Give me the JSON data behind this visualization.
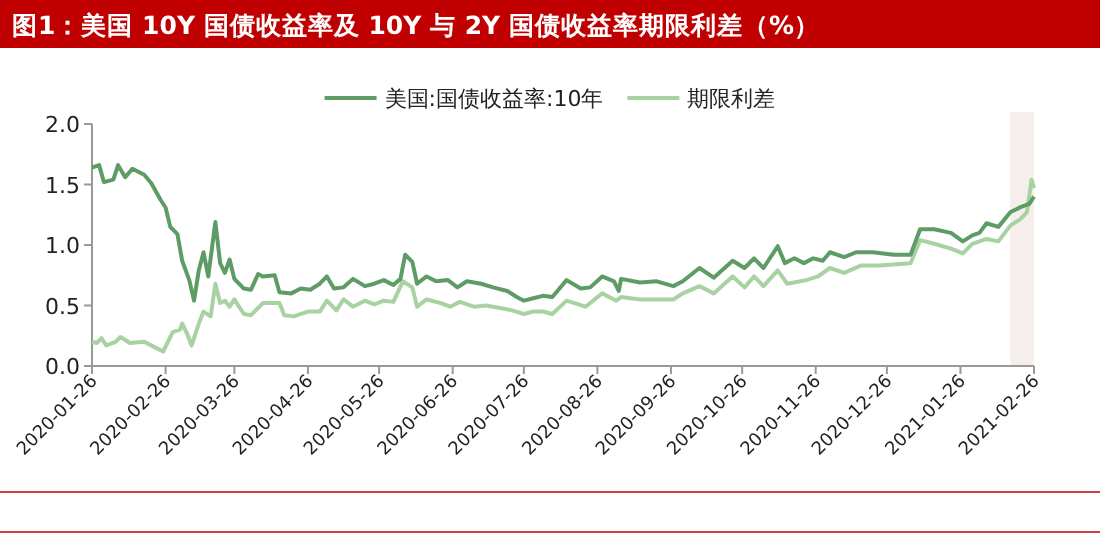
{
  "chart_data": {
    "type": "line",
    "title": "图1：美国 10Y 国债收益率及 10Y 与 2Y 国债收益率期限利差（%）",
    "series": [
      {
        "name": "美国:国债收益率:10年",
        "color": "#5e9c66",
        "x": [
          "2020-01-26",
          "2020-01-29",
          "2020-01-31",
          "2020-02-04",
          "2020-02-06",
          "2020-02-09",
          "2020-02-12",
          "2020-02-17",
          "2020-02-20",
          "2020-02-24",
          "2020-02-26",
          "2020-02-28",
          "2020-03-02",
          "2020-03-04",
          "2020-03-07",
          "2020-03-09",
          "2020-03-11",
          "2020-03-13",
          "2020-03-15",
          "2020-03-18",
          "2020-03-20",
          "2020-03-22",
          "2020-03-24",
          "2020-03-26",
          "2020-03-30",
          "2020-04-02",
          "2020-04-05",
          "2020-04-07",
          "2020-04-12",
          "2020-04-14",
          "2020-04-19",
          "2020-04-23",
          "2020-04-27",
          "2020-05-01",
          "2020-05-04",
          "2020-05-07",
          "2020-05-11",
          "2020-05-15",
          "2020-05-20",
          "2020-05-24",
          "2020-05-28",
          "2020-06-01",
          "2020-06-04",
          "2020-06-06",
          "2020-06-09",
          "2020-06-11",
          "2020-06-15",
          "2020-06-19",
          "2020-06-24",
          "2020-06-28",
          "2020-07-02",
          "2020-07-08",
          "2020-07-13",
          "2020-07-19",
          "2020-07-23",
          "2020-07-26",
          "2020-07-30",
          "2020-08-03",
          "2020-08-07",
          "2020-08-13",
          "2020-08-19",
          "2020-08-23",
          "2020-08-28",
          "2020-09-02",
          "2020-09-04",
          "2020-09-05",
          "2020-09-13",
          "2020-09-20",
          "2020-09-27",
          "2020-10-01",
          "2020-10-08",
          "2020-10-14",
          "2020-10-22",
          "2020-10-27",
          "2020-10-31",
          "2020-11-04",
          "2020-11-10",
          "2020-11-13",
          "2020-11-17",
          "2020-11-21",
          "2020-11-25",
          "2020-11-29",
          "2020-12-02",
          "2020-12-08",
          "2020-12-13",
          "2020-12-20",
          "2020-12-29",
          "2021-01-05",
          "2021-01-09",
          "2021-01-15",
          "2021-01-22",
          "2021-01-27",
          "2021-01-31",
          "2021-02-03",
          "2021-02-06",
          "2021-02-11",
          "2021-02-16",
          "2021-02-20",
          "2021-02-24",
          "2021-02-26"
        ],
        "values": [
          1.64,
          1.66,
          1.52,
          1.54,
          1.66,
          1.56,
          1.63,
          1.58,
          1.51,
          1.37,
          1.31,
          1.15,
          1.09,
          0.87,
          0.71,
          0.54,
          0.79,
          0.94,
          0.74,
          1.19,
          0.85,
          0.77,
          0.88,
          0.72,
          0.64,
          0.63,
          0.76,
          0.74,
          0.75,
          0.61,
          0.6,
          0.64,
          0.63,
          0.68,
          0.74,
          0.64,
          0.65,
          0.72,
          0.66,
          0.68,
          0.71,
          0.67,
          0.72,
          0.92,
          0.86,
          0.68,
          0.74,
          0.7,
          0.71,
          0.65,
          0.7,
          0.68,
          0.65,
          0.62,
          0.57,
          0.54,
          0.56,
          0.58,
          0.57,
          0.71,
          0.64,
          0.65,
          0.74,
          0.7,
          0.62,
          0.72,
          0.69,
          0.7,
          0.66,
          0.7,
          0.81,
          0.73,
          0.87,
          0.81,
          0.89,
          0.81,
          0.99,
          0.85,
          0.89,
          0.85,
          0.89,
          0.87,
          0.94,
          0.9,
          0.94,
          0.94,
          0.92,
          0.92,
          1.13,
          1.13,
          1.1,
          1.03,
          1.08,
          1.1,
          1.18,
          1.15,
          1.27,
          1.31,
          1.34,
          1.4
        ]
      },
      {
        "name": "期限利差",
        "color": "#a9d2a2",
        "x": [
          "2020-01-26",
          "2020-01-28",
          "2020-01-30",
          "2020-02-01",
          "2020-02-05",
          "2020-02-07",
          "2020-02-11",
          "2020-02-17",
          "2020-02-22",
          "2020-02-25",
          "2020-02-27",
          "2020-02-29",
          "2020-03-03",
          "2020-03-04",
          "2020-03-06",
          "2020-03-08",
          "2020-03-11",
          "2020-03-13",
          "2020-03-16",
          "2020-03-18",
          "2020-03-20",
          "2020-03-22",
          "2020-03-24",
          "2020-03-26",
          "2020-03-30",
          "2020-04-02",
          "2020-04-07",
          "2020-04-14",
          "2020-04-16",
          "2020-04-20",
          "2020-04-26",
          "2020-05-01",
          "2020-05-04",
          "2020-05-08",
          "2020-05-11",
          "2020-05-15",
          "2020-05-20",
          "2020-05-24",
          "2020-05-28",
          "2020-06-01",
          "2020-06-05",
          "2020-06-09",
          "2020-06-11",
          "2020-06-15",
          "2020-06-21",
          "2020-06-25",
          "2020-06-29",
          "2020-07-05",
          "2020-07-10",
          "2020-07-16",
          "2020-07-21",
          "2020-07-26",
          "2020-07-30",
          "2020-08-03",
          "2020-08-07",
          "2020-08-13",
          "2020-08-21",
          "2020-08-28",
          "2020-09-03",
          "2020-09-05",
          "2020-09-13",
          "2020-09-27",
          "2020-10-01",
          "2020-10-08",
          "2020-10-14",
          "2020-10-22",
          "2020-10-27",
          "2020-10-31",
          "2020-11-04",
          "2020-11-10",
          "2020-11-14",
          "2020-11-22",
          "2020-11-27",
          "2020-12-02",
          "2020-12-08",
          "2020-12-15",
          "2020-12-23",
          "2021-01-05",
          "2021-01-09",
          "2021-01-15",
          "2021-01-22",
          "2021-01-27",
          "2021-01-31",
          "2021-02-06",
          "2021-02-11",
          "2021-02-16",
          "2021-02-20",
          "2021-02-23",
          "2021-02-25",
          "2021-02-26"
        ],
        "values": [
          0.2,
          0.19,
          0.23,
          0.17,
          0.2,
          0.24,
          0.19,
          0.2,
          0.15,
          0.12,
          0.2,
          0.28,
          0.3,
          0.35,
          0.27,
          0.17,
          0.35,
          0.45,
          0.41,
          0.68,
          0.52,
          0.54,
          0.49,
          0.55,
          0.43,
          0.42,
          0.52,
          0.52,
          0.42,
          0.41,
          0.45,
          0.45,
          0.54,
          0.46,
          0.55,
          0.49,
          0.54,
          0.51,
          0.54,
          0.53,
          0.7,
          0.65,
          0.49,
          0.55,
          0.52,
          0.49,
          0.53,
          0.49,
          0.5,
          0.48,
          0.46,
          0.43,
          0.45,
          0.45,
          0.43,
          0.54,
          0.49,
          0.6,
          0.54,
          0.57,
          0.55,
          0.55,
          0.6,
          0.66,
          0.6,
          0.74,
          0.65,
          0.74,
          0.66,
          0.79,
          0.68,
          0.71,
          0.74,
          0.81,
          0.77,
          0.83,
          0.83,
          0.85,
          1.04,
          1.01,
          0.97,
          0.93,
          1.01,
          1.05,
          1.03,
          1.16,
          1.21,
          1.27,
          1.54,
          1.47
        ]
      }
    ],
    "xlim": [
      "2020-01-26",
      "2021-02-26"
    ],
    "xticks": [
      "2020-01-26",
      "2020-02-26",
      "2020-03-26",
      "2020-04-26",
      "2020-05-26",
      "2020-06-26",
      "2020-07-26",
      "2020-08-26",
      "2020-09-26",
      "2020-10-26",
      "2020-11-26",
      "2020-12-26",
      "2021-01-26",
      "2021-02-26"
    ],
    "ylim": [
      0,
      2
    ],
    "yticks": [
      {
        "value": 0,
        "label": "0.0"
      },
      {
        "value": 0.5,
        "label": "0.5"
      },
      {
        "value": 1,
        "label": "1.0"
      },
      {
        "value": 1.5,
        "label": "1.5"
      },
      {
        "value": 2,
        "label": "2.0"
      }
    ],
    "bands": [
      {
        "axis": "x",
        "from": "2021-02-16",
        "to": "2021-02-26",
        "color": "#f6eeec"
      }
    ],
    "legend": "top",
    "grid": false,
    "marker": "none",
    "line_style": "solid"
  }
}
